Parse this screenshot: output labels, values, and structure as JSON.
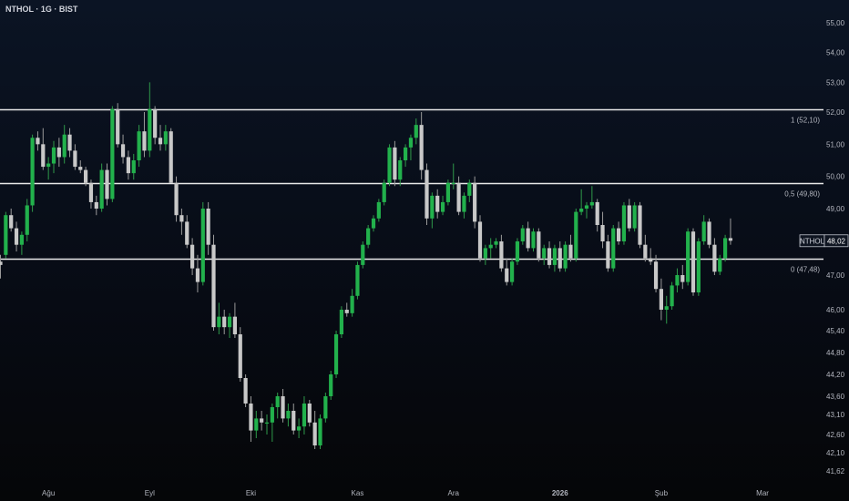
{
  "header": {
    "title": "NTHOL · 1G · BIST"
  },
  "chart_data": {
    "type": "candlestick",
    "symbol": "NTHOL",
    "last_price_label": "48,02",
    "ylim": [
      41.3,
      55.2
    ],
    "y_ticks": [
      "55,00",
      "54,00",
      "53,00",
      "52,00",
      "51,00",
      "50,00",
      "49,00",
      "48,00",
      "47,00",
      "46,00",
      "45,40",
      "44,80",
      "44,20",
      "43,60",
      "43,10",
      "42,60",
      "42,10",
      "41,62"
    ],
    "y_tick_values": [
      55.0,
      54.0,
      53.0,
      52.0,
      51.0,
      50.0,
      49.0,
      48.0,
      47.0,
      46.0,
      45.4,
      44.8,
      44.2,
      43.6,
      43.1,
      42.6,
      42.1,
      41.62
    ],
    "x_labels": [
      {
        "label": "Ağu",
        "index": 9
      },
      {
        "label": "Eyl",
        "index": 28
      },
      {
        "label": "Eki",
        "index": 47
      },
      {
        "label": "Kas",
        "index": 67
      },
      {
        "label": "Ara",
        "index": 85
      },
      {
        "label": "2026",
        "index": 105
      },
      {
        "label": "Şub",
        "index": 124
      },
      {
        "label": "Mar",
        "index": 143
      }
    ],
    "x_count": 155,
    "levels": [
      {
        "value": 52.1,
        "label": "1 (52,10)"
      },
      {
        "value": 49.8,
        "label": "0,5 (49,80)"
      },
      {
        "value": 47.48,
        "label": "0 (47,48)"
      }
    ],
    "ohlc": [
      [
        47.4,
        47.6,
        46.9,
        47.3
      ],
      [
        47.6,
        48.9,
        47.5,
        48.8
      ],
      [
        48.8,
        49.0,
        48.3,
        48.4
      ],
      [
        48.4,
        48.6,
        47.7,
        47.9
      ],
      [
        47.9,
        48.3,
        47.6,
        48.2
      ],
      [
        48.2,
        49.3,
        48.0,
        49.1
      ],
      [
        49.1,
        51.3,
        48.9,
        51.2
      ],
      [
        51.2,
        51.4,
        50.8,
        51.0
      ],
      [
        51.0,
        51.5,
        50.2,
        50.3
      ],
      [
        50.3,
        50.6,
        49.9,
        50.4
      ],
      [
        50.4,
        51.1,
        50.1,
        50.9
      ],
      [
        50.9,
        51.2,
        50.3,
        50.6
      ],
      [
        50.6,
        51.6,
        50.4,
        51.3
      ],
      [
        51.3,
        51.5,
        50.6,
        50.8
      ],
      [
        50.8,
        51.0,
        50.2,
        50.3
      ],
      [
        50.3,
        50.5,
        50.1,
        50.2
      ],
      [
        50.2,
        50.3,
        49.7,
        49.8
      ],
      [
        49.8,
        49.9,
        49.0,
        49.2
      ],
      [
        49.2,
        49.4,
        48.8,
        49.0
      ],
      [
        49.0,
        50.4,
        48.9,
        50.2
      ],
      [
        50.2,
        50.4,
        49.1,
        49.3
      ],
      [
        49.3,
        52.2,
        49.2,
        52.1
      ],
      [
        52.1,
        52.3,
        50.9,
        51.0
      ],
      [
        51.0,
        51.3,
        50.4,
        50.6
      ],
      [
        50.6,
        50.8,
        49.9,
        50.1
      ],
      [
        50.1,
        50.7,
        49.9,
        50.5
      ],
      [
        50.5,
        51.6,
        50.3,
        51.4
      ],
      [
        51.4,
        52.0,
        50.6,
        50.8
      ],
      [
        50.8,
        53.0,
        50.6,
        52.1
      ],
      [
        52.1,
        52.2,
        51.0,
        51.2
      ],
      [
        51.2,
        51.6,
        50.8,
        51.0
      ],
      [
        51.0,
        51.6,
        50.8,
        51.4
      ],
      [
        51.4,
        51.5,
        49.8,
        49.8
      ],
      [
        49.8,
        50.0,
        48.6,
        48.8
      ],
      [
        48.8,
        49.0,
        48.2,
        48.6
      ],
      [
        48.6,
        48.8,
        47.8,
        47.9
      ],
      [
        47.9,
        48.1,
        47.0,
        47.2
      ],
      [
        47.2,
        47.6,
        46.5,
        46.8
      ],
      [
        46.8,
        49.2,
        46.7,
        49.0
      ],
      [
        49.0,
        49.2,
        47.6,
        47.9
      ],
      [
        47.9,
        48.2,
        45.4,
        45.5
      ],
      [
        45.5,
        46.2,
        45.3,
        45.8
      ],
      [
        45.8,
        46.0,
        45.3,
        45.5
      ],
      [
        45.5,
        45.9,
        45.2,
        45.8
      ],
      [
        45.8,
        46.2,
        45.2,
        45.3
      ],
      [
        45.3,
        45.5,
        44.0,
        44.1
      ],
      [
        44.1,
        44.2,
        43.3,
        43.4
      ],
      [
        43.4,
        43.6,
        42.4,
        42.7
      ],
      [
        42.7,
        43.2,
        42.5,
        43.0
      ],
      [
        43.0,
        43.2,
        42.7,
        42.9
      ],
      [
        42.9,
        43.1,
        42.6,
        42.9
      ],
      [
        42.9,
        43.4,
        42.4,
        43.3
      ],
      [
        43.3,
        43.7,
        43.0,
        43.6
      ],
      [
        43.6,
        43.8,
        42.9,
        43.0
      ],
      [
        43.0,
        43.4,
        42.8,
        43.2
      ],
      [
        43.2,
        43.4,
        42.6,
        42.7
      ],
      [
        42.7,
        43.0,
        42.5,
        42.8
      ],
      [
        42.8,
        43.6,
        42.6,
        43.4
      ],
      [
        43.4,
        43.5,
        42.8,
        42.9
      ],
      [
        42.9,
        43.2,
        42.2,
        42.3
      ],
      [
        42.3,
        43.1,
        42.2,
        43.0
      ],
      [
        43.0,
        43.7,
        42.9,
        43.6
      ],
      [
        43.6,
        44.3,
        43.5,
        44.2
      ],
      [
        44.2,
        45.4,
        44.1,
        45.3
      ],
      [
        45.3,
        46.1,
        45.2,
        46.0
      ],
      [
        46.0,
        46.2,
        45.8,
        45.9
      ],
      [
        45.9,
        46.6,
        45.8,
        46.4
      ],
      [
        46.4,
        47.4,
        46.3,
        47.3
      ],
      [
        47.3,
        48.0,
        47.2,
        47.9
      ],
      [
        47.9,
        48.5,
        47.8,
        48.4
      ],
      [
        48.4,
        48.8,
        48.3,
        48.7
      ],
      [
        48.7,
        49.3,
        48.6,
        49.2
      ],
      [
        49.2,
        49.9,
        49.1,
        49.8
      ],
      [
        49.8,
        51.0,
        49.7,
        50.9
      ],
      [
        50.9,
        51.1,
        49.7,
        49.9
      ],
      [
        49.9,
        50.6,
        49.7,
        50.5
      ],
      [
        50.5,
        51.0,
        50.3,
        50.9
      ],
      [
        50.9,
        51.3,
        50.5,
        51.2
      ],
      [
        51.2,
        51.8,
        51.0,
        51.6
      ],
      [
        51.6,
        52.0,
        49.9,
        50.2
      ],
      [
        50.2,
        50.4,
        48.5,
        48.7
      ],
      [
        48.7,
        49.5,
        48.4,
        49.4
      ],
      [
        49.4,
        49.6,
        48.7,
        48.9
      ],
      [
        48.9,
        49.4,
        48.8,
        49.2
      ],
      [
        49.2,
        49.9,
        49.1,
        49.8
      ],
      [
        49.8,
        50.4,
        49.6,
        49.8
      ],
      [
        49.8,
        50.0,
        48.8,
        48.9
      ],
      [
        48.9,
        49.5,
        48.7,
        49.4
      ],
      [
        49.4,
        49.9,
        49.2,
        49.8
      ],
      [
        49.8,
        50.0,
        48.4,
        48.6
      ],
      [
        48.6,
        48.8,
        47.4,
        47.5
      ],
      [
        47.5,
        47.9,
        47.3,
        47.8
      ],
      [
        47.8,
        48.1,
        47.5,
        47.9
      ],
      [
        47.9,
        48.1,
        47.8,
        48.0
      ],
      [
        48.0,
        48.2,
        47.1,
        47.2
      ],
      [
        47.2,
        47.5,
        46.7,
        46.8
      ],
      [
        46.8,
        47.5,
        46.7,
        47.4
      ],
      [
        47.4,
        48.1,
        47.3,
        48.0
      ],
      [
        48.0,
        48.5,
        47.9,
        48.4
      ],
      [
        48.4,
        48.6,
        47.7,
        47.8
      ],
      [
        47.8,
        48.4,
        47.7,
        48.3
      ],
      [
        48.3,
        48.4,
        47.4,
        47.5
      ],
      [
        47.5,
        47.9,
        47.3,
        47.8
      ],
      [
        47.8,
        48.0,
        47.2,
        47.3
      ],
      [
        47.3,
        47.9,
        47.1,
        47.8
      ],
      [
        47.8,
        48.0,
        47.1,
        47.2
      ],
      [
        47.2,
        48.0,
        47.1,
        47.9
      ],
      [
        47.9,
        48.2,
        47.4,
        47.5
      ],
      [
        47.5,
        49.0,
        47.4,
        48.9
      ],
      [
        48.9,
        49.6,
        48.8,
        49.0
      ],
      [
        49.0,
        49.2,
        48.7,
        49.1
      ],
      [
        49.1,
        49.7,
        49.0,
        49.2
      ],
      [
        49.2,
        49.3,
        48.3,
        48.5
      ],
      [
        48.5,
        48.9,
        47.8,
        48.0
      ],
      [
        48.0,
        48.2,
        47.1,
        47.2
      ],
      [
        47.2,
        48.5,
        47.1,
        48.4
      ],
      [
        48.4,
        48.6,
        47.9,
        48.0
      ],
      [
        48.0,
        49.2,
        47.9,
        49.1
      ],
      [
        49.1,
        49.3,
        48.3,
        48.4
      ],
      [
        48.4,
        49.2,
        48.3,
        49.1
      ],
      [
        49.1,
        49.2,
        47.8,
        47.9
      ],
      [
        47.9,
        48.2,
        47.4,
        47.5
      ],
      [
        47.5,
        47.8,
        47.3,
        47.4
      ],
      [
        47.4,
        47.6,
        46.5,
        46.6
      ],
      [
        46.6,
        46.9,
        45.7,
        46.0
      ],
      [
        46.0,
        46.4,
        45.6,
        46.1
      ],
      [
        46.1,
        46.8,
        46.0,
        46.7
      ],
      [
        46.7,
        47.2,
        46.5,
        47.0
      ],
      [
        47.0,
        47.3,
        46.6,
        46.8
      ],
      [
        46.8,
        48.4,
        46.7,
        48.3
      ],
      [
        48.3,
        48.4,
        46.4,
        46.5
      ],
      [
        46.5,
        48.1,
        46.4,
        48.0
      ],
      [
        48.0,
        48.8,
        47.9,
        48.6
      ],
      [
        48.6,
        48.7,
        47.8,
        47.9
      ],
      [
        47.9,
        48.1,
        47.0,
        47.1
      ],
      [
        47.1,
        47.6,
        47.0,
        47.5
      ],
      [
        47.5,
        48.2,
        47.4,
        48.1
      ],
      [
        48.1,
        48.7,
        47.9,
        48.02
      ]
    ]
  }
}
